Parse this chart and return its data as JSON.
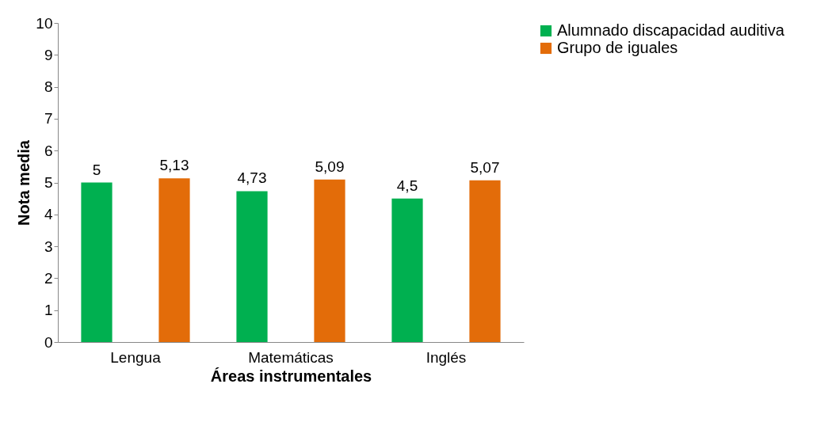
{
  "chart_data": {
    "type": "bar",
    "xlabel": "Áreas instrumentales",
    "ylabel": "Nota media",
    "categories": [
      "Lengua",
      "Matemáticas",
      "Inglés"
    ],
    "series": [
      {
        "name": "Alumnado discapacidad auditiva",
        "color": "#00b050",
        "values": [
          5,
          4.73,
          4.5
        ],
        "value_labels": [
          "5",
          "4,73",
          "4,5"
        ]
      },
      {
        "name": "Grupo de iguales",
        "color": "#e36c09",
        "values": [
          5.13,
          5.09,
          5.07
        ],
        "value_labels": [
          "5,13",
          "5,09",
          "5,07"
        ]
      }
    ],
    "ylim": [
      0,
      10
    ],
    "yticks": [
      0,
      1,
      2,
      3,
      4,
      5,
      6,
      7,
      8,
      9,
      10
    ],
    "grid": false,
    "legend": "right"
  }
}
